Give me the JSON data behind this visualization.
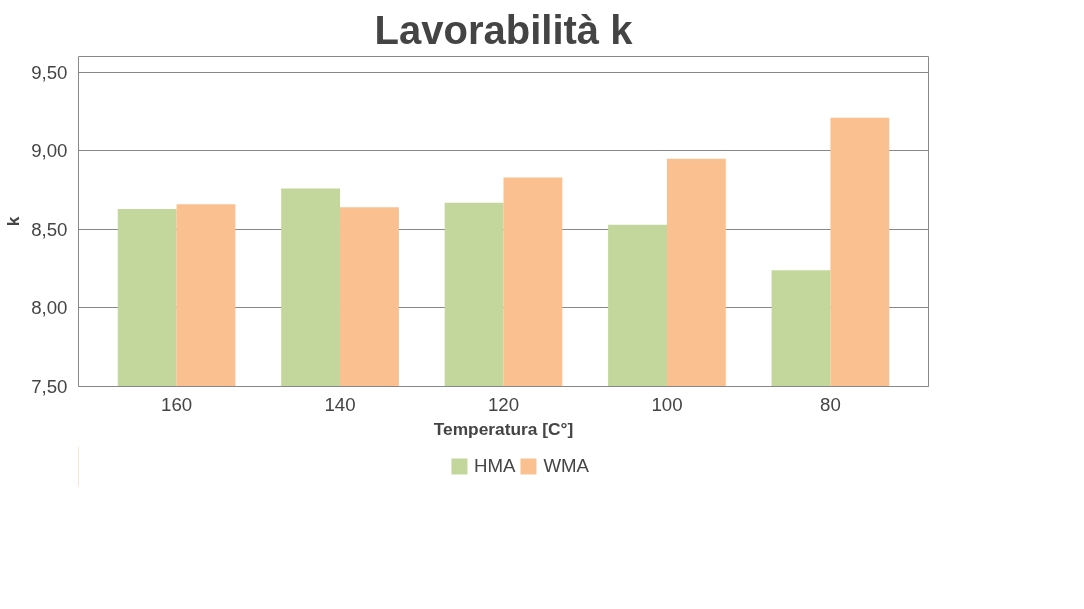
{
  "chart_data": {
    "type": "bar",
    "title": "Lavorabilità k",
    "xlabel": "Temperatura [C°]",
    "ylabel": "k",
    "categories": [
      "160",
      "140",
      "120",
      "100",
      "80"
    ],
    "series": [
      {
        "name": "HMA",
        "color": "#c3d69b",
        "values": [
          8.63,
          8.76,
          8.67,
          8.53,
          8.24
        ]
      },
      {
        "name": "WMA",
        "color": "#fac090",
        "values": [
          8.66,
          8.64,
          8.83,
          8.95,
          9.21
        ]
      }
    ],
    "ylim": [
      7.5,
      9.6
    ],
    "yticks": [
      {
        "value": 7.5,
        "label": "7,50"
      },
      {
        "value": 8.0,
        "label": "8,00"
      },
      {
        "value": 8.5,
        "label": "8,50"
      },
      {
        "value": 9.0,
        "label": "9,00"
      },
      {
        "value": 9.5,
        "label": "9,50"
      }
    ],
    "grid": "y",
    "legend": "bottom"
  }
}
